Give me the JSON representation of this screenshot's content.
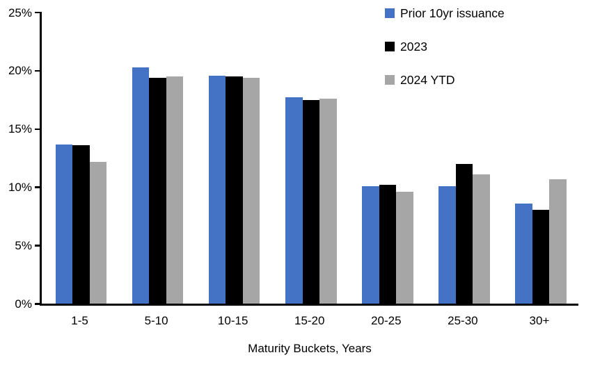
{
  "chart_data": {
    "type": "bar",
    "title": "",
    "xlabel": "Maturity Buckets, Years",
    "ylabel": "",
    "categories": [
      "1-5",
      "5-10",
      "10-15",
      "15-20",
      "20-25",
      "25-30",
      "30+"
    ],
    "series": [
      {
        "name": "Prior 10yr issuance",
        "color": "#4472C4",
        "values": [
          13.7,
          20.3,
          19.6,
          17.7,
          10.1,
          10.1,
          8.6
        ]
      },
      {
        "name": "2023",
        "color": "#000000",
        "values": [
          13.6,
          19.4,
          19.5,
          17.5,
          10.2,
          12.0,
          8.1
        ]
      },
      {
        "name": "2024 YTD",
        "color": "#A6A6A6",
        "values": [
          12.2,
          19.5,
          19.4,
          17.6,
          9.6,
          11.1,
          10.7
        ]
      }
    ],
    "ylim": [
      0,
      25
    ],
    "y_tick_labels": [
      "0%",
      "5%",
      "10%",
      "15%",
      "20%",
      "25%"
    ],
    "y_tick_values": [
      0,
      5,
      10,
      15,
      20,
      25
    ],
    "grid": false,
    "legend_position": "top-right",
    "axis_color": "#000000",
    "text_color": "#000000",
    "background_color": "#FFFFFF"
  }
}
